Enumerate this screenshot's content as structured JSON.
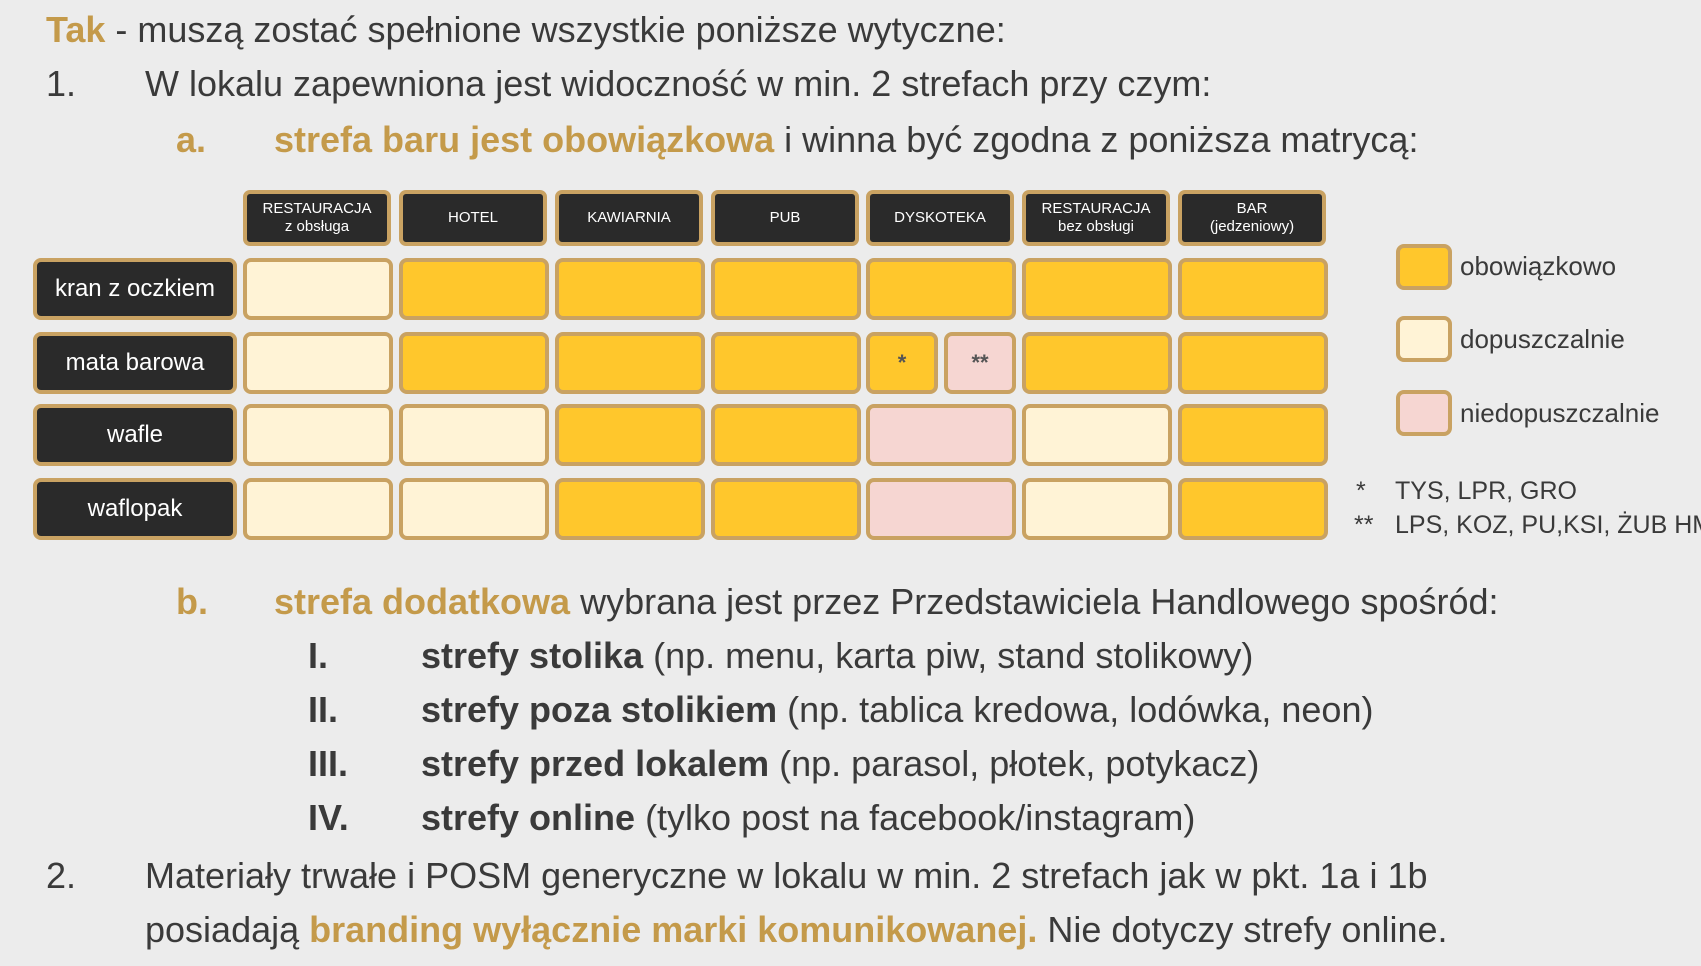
{
  "intro": {
    "tak": "Tak",
    "rest": " - muszą zostać spełnione wszystkie poniższe wytyczne:"
  },
  "p1": {
    "num": "1.",
    "text": "W lokalu zapewniona jest widoczność w min. 2 strefach przy czym:"
  },
  "pa": {
    "letter": "a.",
    "bold": "strefa baru jest obowiązkowa",
    "rest": " i winna być zgodna z poniższa matrycą:"
  },
  "matrix": {
    "columns": [
      {
        "l1": "RESTAURACJA",
        "l2": "z obsługa"
      },
      {
        "l1": "HOTEL",
        "l2": ""
      },
      {
        "l1": "KAWIARNIA",
        "l2": ""
      },
      {
        "l1": "PUB",
        "l2": ""
      },
      {
        "l1": "DYSKOTEKA",
        "l2": ""
      },
      {
        "l1": "RESTAURACJA",
        "l2": "bez obsługi"
      },
      {
        "l1": "BAR",
        "l2": "(jedzeniowy)"
      }
    ],
    "rows": [
      {
        "label": "kran z oczkiem",
        "cells": [
          "dopuszczalnie",
          "obowiązkowo",
          "obowiązkowo",
          "obowiązkowo",
          "obowiązkowo",
          "obowiązkowo",
          "obowiązkowo"
        ]
      },
      {
        "label": "mata barowa",
        "cells": [
          "dopuszczalnie",
          "obowiązkowo",
          "obowiązkowo",
          "obowiązkowo",
          "split",
          "obowiązkowo",
          "obowiązkowo"
        ],
        "split": {
          "left_status": "obowiązkowo",
          "left_mark": "*",
          "right_status": "niedopuszczalnie",
          "right_mark": "**"
        }
      },
      {
        "label": "wafle",
        "cells": [
          "dopuszczalnie",
          "dopuszczalnie",
          "obowiązkowo",
          "obowiązkowo",
          "niedopuszczalnie",
          "dopuszczalnie",
          "obowiązkowo"
        ]
      },
      {
        "label": "waflopak",
        "cells": [
          "dopuszczalnie",
          "dopuszczalnie",
          "obowiązkowo",
          "obowiązkowo",
          "niedopuszczalnie",
          "dopuszczalnie",
          "obowiązkowo"
        ]
      }
    ]
  },
  "legend": {
    "obowiazkowo": "obowiązkowo",
    "dopuszczalnie": "dopuszczalnie",
    "niedopuszczalnie": "niedopuszczalnie"
  },
  "notes": {
    "n1_mark": "*",
    "n1_text": "TYS, LPR, GRO",
    "n2_mark": "**",
    "n2_text": "LPS, KOZ, PU,KSI, ŻUB HM"
  },
  "pb": {
    "letter": "b.",
    "bold": "strefa dodatkowa",
    "rest": " wybrana jest przez Przedstawiciela Handlowego spośród:"
  },
  "sub": [
    {
      "num": "I.",
      "bold": "strefy stolika",
      "rest": " (np. menu, karta piw, stand stolikowy)"
    },
    {
      "num": "II.",
      "bold": "strefy poza stolikiem",
      "rest": " (np. tablica kredowa, lodówka, neon)"
    },
    {
      "num": "III.",
      "bold": "strefy przed lokalem",
      "rest": " (np. parasol, płotek, potykacz)"
    },
    {
      "num": "IV.",
      "bold": "strefy online",
      "rest": " (tylko post na facebook/instagram)"
    }
  ],
  "p2": {
    "num": "2.",
    "line1": "Materiały trwałe i POSM generyczne w lokalu w min. 2 strefach jak w pkt. 1a i 1b",
    "line2a": "posiadają ",
    "line2b": "branding wyłącznie marki komunikowanej.",
    "line2c": " Nie dotyczy strefy online."
  },
  "colors": {
    "ob": "#ffc72c",
    "do": "#fff3d6",
    "ni": "#f6d6d2",
    "gold": "#c49a4a"
  }
}
